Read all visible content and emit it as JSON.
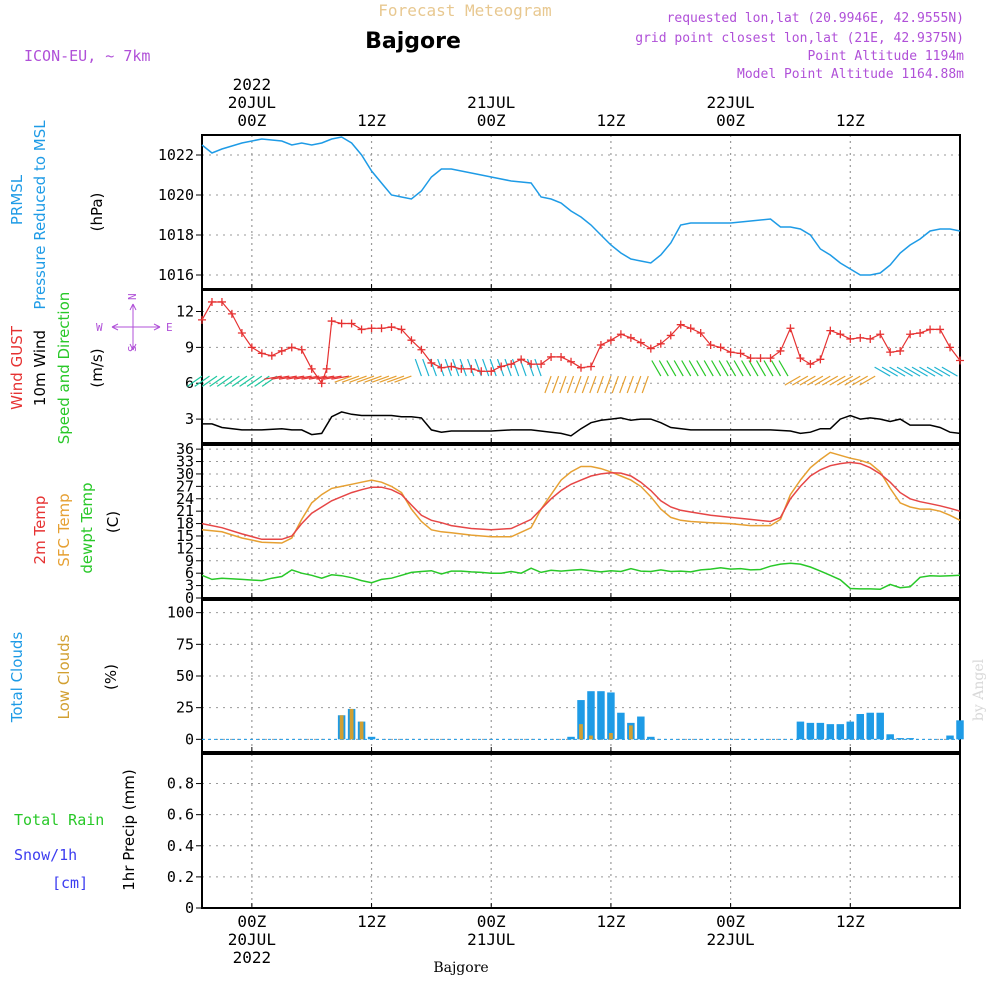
{
  "header": {
    "title": "Forecast Meteogram",
    "location": "Bajgore",
    "model": "ICON-EU, ~ 7km",
    "requested": "requested lon,lat (20.9946E, 42.9555N)",
    "grid_point": "grid point closest lon,lat (21E, 42.9375N)",
    "point_altitude": "Point Altitude 1194m",
    "model_altitude": "Model Point Altitude 1164.88m"
  },
  "footer": {
    "location": "Bajgore",
    "watermark": "by Angel"
  },
  "time_axis": {
    "top_labels": [
      {
        "t": 0,
        "lines": [
          "2022",
          "20JUL",
          "00Z"
        ]
      },
      {
        "t": 12,
        "lines": [
          "12Z"
        ]
      },
      {
        "t": 24,
        "lines": [
          "21JUL",
          "00Z"
        ]
      },
      {
        "t": 36,
        "lines": [
          "12Z"
        ]
      },
      {
        "t": 48,
        "lines": [
          "22JUL",
          "00Z"
        ]
      },
      {
        "t": 60,
        "lines": [
          "12Z"
        ]
      }
    ],
    "bottom_labels": [
      {
        "t": 0,
        "lines": [
          "00Z",
          "20JUL",
          "2022"
        ]
      },
      {
        "t": 12,
        "lines": [
          "12Z"
        ]
      },
      {
        "t": 24,
        "lines": [
          "00Z",
          "21JUL"
        ]
      },
      {
        "t": 36,
        "lines": [
          "12Z"
        ]
      },
      {
        "t": 48,
        "lines": [
          "00Z",
          "22JUL"
        ]
      },
      {
        "t": 60,
        "lines": [
          "12Z"
        ]
      }
    ],
    "t_start": -5,
    "t_end": 71
  },
  "colors": {
    "pressure": "#1e9be6",
    "gust": "#e63232",
    "wind": "#000000",
    "t2m": "#e64646",
    "sfc": "#e6a032",
    "dewpt": "#28c828",
    "total_cloud": "#1e9be6",
    "low_cloud": "#d2a032",
    "rain": "#28c828",
    "snow": "#3c3cf0",
    "label_purple": "#b050d8",
    "title_tan": "#e8c890"
  },
  "panels": {
    "pressure": {
      "labels": [
        {
          "text": "PRMSL",
          "color": "#1e9be6"
        },
        {
          "text": "Pressure Reduced to MSL",
          "color": "#1e9be6"
        }
      ],
      "unit": "(hPa)",
      "ticks": [
        "1016",
        "1018",
        "1020",
        "1022"
      ]
    },
    "wind": {
      "labels": [
        {
          "text": "Wind GUST",
          "color": "#e63232"
        },
        {
          "text": "10m Wind",
          "color": "#000000"
        },
        {
          "text": "Speed and Direction",
          "color": "#28c828"
        }
      ],
      "unit": "(m/s)",
      "ticks": [
        "3",
        "6",
        "9",
        "12"
      ],
      "compass": {
        "n": "N",
        "s": "S",
        "w": "W",
        "e": "E"
      }
    },
    "temp": {
      "labels": [
        {
          "text": "2m Temp",
          "color": "#e63232"
        },
        {
          "text": "SFC Temp",
          "color": "#e6a032"
        },
        {
          "text": "dewpt Temp",
          "color": "#28c828"
        }
      ],
      "unit": "(C)",
      "ticks": [
        "0",
        "3",
        "6",
        "9",
        "12",
        "15",
        "18",
        "21",
        "24",
        "27",
        "30",
        "33",
        "36"
      ]
    },
    "clouds": {
      "labels": [
        {
          "text": "Total Clouds",
          "color": "#1e9be6"
        },
        {
          "text": "Low Clouds",
          "color": "#d2a032"
        }
      ],
      "unit": "(%)",
      "ticks": [
        "0",
        "25",
        "50",
        "75",
        "100"
      ]
    },
    "precip": {
      "labels": [
        {
          "text": "Total  Rain",
          "color": "#28c828"
        },
        {
          "text": "Snow/1h",
          "color": "#3c3cf0"
        },
        {
          "text": "[cm]",
          "color": "#3c3cf0"
        }
      ],
      "unit": "1hr Precip (mm)",
      "ticks": [
        "0",
        "0.2",
        "0.4",
        "0.6",
        "0.8"
      ]
    }
  },
  "chart_data": {
    "type": "line",
    "x_unit": "hours from 20JUL2022 00Z",
    "pressure": {
      "name": "PRMSL",
      "ylim": [
        1015.3,
        1023.0
      ],
      "x": [
        -5,
        -4,
        -3,
        -1,
        1,
        3,
        4,
        5,
        6,
        7,
        8,
        9,
        10,
        11,
        12,
        13,
        14,
        15,
        16,
        17,
        18,
        19,
        20,
        22,
        24,
        26,
        28,
        29,
        30,
        31,
        32,
        33,
        34,
        35,
        36,
        37,
        38,
        39,
        40,
        41,
        42,
        43,
        44,
        46,
        48,
        50,
        52,
        53,
        54,
        55,
        56,
        57,
        58,
        59,
        60,
        61,
        62,
        63,
        64,
        65,
        66,
        67,
        68,
        69,
        70,
        71
      ],
      "y": [
        1022.5,
        1022.1,
        1022.3,
        1022.6,
        1022.8,
        1022.7,
        1022.5,
        1022.6,
        1022.5,
        1022.6,
        1022.8,
        1022.9,
        1022.6,
        1022.0,
        1021.2,
        1020.6,
        1020.0,
        1019.9,
        1019.8,
        1020.2,
        1020.9,
        1021.3,
        1021.3,
        1021.1,
        1020.9,
        1020.7,
        1020.6,
        1019.9,
        1019.8,
        1019.6,
        1019.2,
        1018.9,
        1018.5,
        1018.0,
        1017.5,
        1017.1,
        1016.8,
        1016.7,
        1016.6,
        1017.0,
        1017.6,
        1018.5,
        1018.6,
        1018.6,
        1018.6,
        1018.7,
        1018.8,
        1018.4,
        1018.4,
        1018.3,
        1018.0,
        1017.3,
        1017.0,
        1016.6,
        1016.3,
        1016.0,
        1016.0,
        1016.1,
        1016.5,
        1017.1,
        1017.5,
        1017.8,
        1018.2,
        1018.3,
        1018.3,
        1018.2
      ]
    },
    "wind": {
      "ylim": [
        1.0,
        13.8
      ],
      "gust": {
        "name": "Wind GUST",
        "x": [
          -5,
          -4,
          -3,
          -2,
          -1,
          0,
          1,
          2,
          3,
          4,
          5,
          6,
          7,
          7.5,
          8,
          9,
          10,
          11,
          12,
          13,
          14,
          15,
          16,
          17,
          18,
          19,
          20,
          21,
          22,
          23,
          24,
          25,
          26,
          27,
          28,
          29,
          30,
          31,
          32,
          33,
          34,
          35,
          36,
          37,
          38,
          39,
          40,
          41,
          42,
          43,
          44,
          45,
          46,
          47,
          48,
          49,
          50,
          51,
          52,
          53,
          54,
          55,
          56,
          57,
          58,
          59,
          60,
          61,
          62,
          63,
          64,
          65,
          66,
          67,
          68,
          69,
          70,
          71
        ],
        "y": [
          11.3,
          12.8,
          12.8,
          11.8,
          10.2,
          9.0,
          8.5,
          8.3,
          8.7,
          9.0,
          8.8,
          7.2,
          6.0,
          7.2,
          11.2,
          11.0,
          11.0,
          10.5,
          10.6,
          10.6,
          10.7,
          10.5,
          9.6,
          8.8,
          7.7,
          7.3,
          7.4,
          7.2,
          7.2,
          7.0,
          7.0,
          7.4,
          7.6,
          8.0,
          7.6,
          7.6,
          8.2,
          8.2,
          7.8,
          7.3,
          7.4,
          9.2,
          9.6,
          10.1,
          9.8,
          9.4,
          8.9,
          9.3,
          10.0,
          10.9,
          10.6,
          10.2,
          9.2,
          9.0,
          8.6,
          8.5,
          8.1,
          8.1,
          8.1,
          8.7,
          10.6,
          8.1,
          7.6,
          8.0,
          10.4,
          10.1,
          9.7,
          9.8,
          9.7,
          10.1,
          8.6,
          8.7,
          10.1,
          10.2,
          10.5,
          10.5,
          9.0,
          7.9
        ]
      },
      "speed": {
        "name": "10m Wind",
        "x": [
          -5,
          -4,
          -3,
          -1,
          1,
          3,
          4,
          5,
          6,
          7,
          8,
          9,
          10,
          11,
          12,
          13,
          14,
          15,
          16,
          17,
          18,
          19,
          20,
          22,
          24,
          26,
          28,
          30,
          31,
          32,
          33,
          34,
          35,
          36,
          37,
          38,
          39,
          40,
          41,
          42,
          44,
          46,
          48,
          50,
          52,
          54,
          55,
          56,
          57,
          58,
          59,
          60,
          61,
          62,
          63,
          64,
          65,
          66,
          67,
          68,
          69,
          70,
          71
        ],
        "y": [
          2.6,
          2.6,
          2.3,
          2.1,
          2.1,
          2.2,
          2.1,
          2.1,
          1.7,
          1.8,
          3.2,
          3.6,
          3.4,
          3.3,
          3.3,
          3.3,
          3.3,
          3.2,
          3.2,
          3.1,
          2.1,
          1.9,
          2.0,
          2.0,
          2.0,
          2.1,
          2.1,
          1.9,
          1.8,
          1.6,
          2.2,
          2.7,
          2.9,
          3.0,
          3.1,
          2.9,
          3.0,
          3.0,
          2.7,
          2.3,
          2.1,
          2.1,
          2.1,
          2.1,
          2.1,
          2.0,
          1.8,
          1.9,
          2.2,
          2.2,
          3.0,
          3.3,
          3.0,
          3.1,
          3.0,
          2.8,
          3.0,
          2.5,
          2.5,
          2.5,
          2.3,
          1.9,
          1.8
        ]
      },
      "direction_bands": [
        {
          "t0": -5,
          "t1": 3,
          "color": "#20c8a0",
          "deg": 235
        },
        {
          "t0": 3,
          "t1": 10,
          "color": "#e63232",
          "deg": 260
        },
        {
          "t0": 10,
          "t1": 16,
          "color": "#e6a032",
          "deg": 250
        },
        {
          "t0": 17,
          "t1": 29,
          "color": "#20b4d2",
          "deg": 340
        },
        {
          "t0": 30,
          "t1": 40,
          "color": "#e6a032",
          "deg": 200
        },
        {
          "t0": 41,
          "t1": 54,
          "color": "#28c828",
          "deg": 330
        },
        {
          "t0": 55,
          "t1": 63,
          "color": "#e6a032",
          "deg": 240
        },
        {
          "t0": 64,
          "t1": 71,
          "color": "#20b4d2",
          "deg": 300
        }
      ]
    },
    "temperature": {
      "ylim": [
        0,
        37
      ],
      "t2m": {
        "name": "2m Temp",
        "x": [
          -5,
          -3,
          -1,
          1,
          3,
          4,
          5,
          6,
          7,
          8,
          9,
          10,
          11,
          12,
          13,
          14,
          15,
          16,
          17,
          18,
          19,
          20,
          22,
          24,
          26,
          28,
          29,
          30,
          31,
          32,
          33,
          34,
          35,
          36,
          37,
          38,
          39,
          40,
          41,
          42,
          43,
          44,
          46,
          48,
          50,
          52,
          53,
          54,
          55,
          56,
          57,
          58,
          59,
          60,
          61,
          62,
          63,
          64,
          65,
          66,
          67,
          68,
          69,
          70,
          71
        ],
        "y": [
          18,
          17,
          15.5,
          14.2,
          14.2,
          15,
          18,
          20.5,
          22,
          23.5,
          24.5,
          25.5,
          26.2,
          26.8,
          26.8,
          26.2,
          25,
          22.5,
          20,
          18.8,
          18.2,
          17.5,
          16.8,
          16.5,
          16.8,
          19,
          21.5,
          24,
          26,
          27.5,
          28.5,
          29.5,
          30,
          30.3,
          30.2,
          29.5,
          28,
          26,
          23.5,
          22,
          21.2,
          20.8,
          20,
          19.5,
          19,
          18.5,
          19.5,
          24,
          27,
          29.5,
          31,
          32,
          32.5,
          32.8,
          32.5,
          31.5,
          30,
          28,
          25.5,
          24,
          23.3,
          22.8,
          22.3,
          21.7,
          21
        ]
      },
      "sfc": {
        "name": "SFC Temp",
        "x": [
          -5,
          -3,
          -1,
          1,
          3,
          4,
          5,
          6,
          7,
          8,
          9,
          10,
          11,
          12,
          13,
          14,
          15,
          16,
          17,
          18,
          19,
          20,
          22,
          24,
          26,
          28,
          29,
          30,
          31,
          32,
          33,
          34,
          35,
          36,
          37,
          38,
          39,
          40,
          41,
          42,
          43,
          44,
          46,
          48,
          50,
          52,
          53,
          54,
          55,
          56,
          57,
          58,
          59,
          60,
          61,
          62,
          63,
          64,
          65,
          66,
          67,
          68,
          69,
          70,
          71
        ],
        "y": [
          16.5,
          16,
          14.5,
          13.5,
          13.3,
          14.5,
          19,
          23,
          25,
          26.5,
          27,
          27.5,
          28,
          28.5,
          28,
          27,
          25.5,
          21.5,
          18.5,
          16.5,
          16,
          15.8,
          15.2,
          14.8,
          14.8,
          17,
          21.5,
          25,
          28.5,
          30.5,
          31.8,
          31.8,
          31.3,
          30.5,
          29.5,
          28.5,
          27,
          24.5,
          21.5,
          19.5,
          18.8,
          18.5,
          18.2,
          18,
          17.5,
          17.5,
          19,
          25,
          28.5,
          31.5,
          33.5,
          35.2,
          34.5,
          33.8,
          33.3,
          32.5,
          30.5,
          26.5,
          23,
          22,
          21.5,
          21.5,
          21,
          20,
          18.8
        ]
      },
      "dewpt": {
        "name": "dewpt Temp",
        "x": [
          -5,
          -4,
          -3,
          -1,
          1,
          2,
          3,
          4,
          5,
          6,
          7,
          8,
          9,
          10,
          11,
          12,
          13,
          14,
          15,
          16,
          17,
          18,
          19,
          20,
          21,
          22,
          23,
          24,
          25,
          26,
          27,
          28,
          29,
          30,
          31,
          32,
          33,
          34,
          35,
          36,
          37,
          38,
          39,
          40,
          41,
          42,
          43,
          44,
          45,
          46,
          47,
          48,
          49,
          50,
          51,
          52,
          53,
          54,
          55,
          56,
          57,
          58,
          59,
          60,
          61,
          62,
          63,
          64,
          65,
          66,
          67,
          68,
          69,
          70,
          71
        ],
        "y": [
          5.5,
          4.5,
          4.8,
          4.5,
          4.2,
          4.8,
          5.2,
          6.8,
          6,
          5.5,
          4.8,
          5.6,
          5.4,
          4.9,
          4.2,
          3.7,
          4.5,
          4.8,
          5.5,
          6.2,
          6.4,
          6.6,
          5.8,
          6.5,
          6.5,
          6.3,
          6.2,
          6,
          6,
          6.4,
          6,
          7.2,
          6.2,
          6.7,
          6.5,
          6.7,
          6.9,
          6.6,
          6.3,
          6.6,
          6.4,
          7.1,
          6.5,
          6.4,
          6.8,
          6.4,
          6.5,
          6.3,
          6.8,
          7,
          7.3,
          7,
          7.1,
          6.8,
          6.9,
          7.7,
          8.2,
          8.4,
          8.2,
          7.5,
          6.5,
          5.5,
          4.4,
          2.3,
          2.2,
          2.2,
          2.1,
          3.3,
          2.5,
          2.7,
          5,
          5.4,
          5.3,
          5.4,
          5.5
        ]
      }
    },
    "clouds": {
      "ylim": [
        -10,
        110
      ],
      "total": {
        "name": "Total Clouds",
        "x": [
          9,
          10,
          11,
          12,
          32,
          33,
          34,
          35,
          36,
          37,
          38,
          39,
          40,
          55,
          56,
          57,
          58,
          59,
          60,
          61,
          62,
          63,
          64,
          65,
          66,
          70,
          71
        ],
        "y": [
          19,
          24,
          14,
          2,
          2,
          31,
          38,
          38,
          37,
          21,
          13,
          18,
          2,
          14,
          13,
          13,
          12,
          12,
          14,
          20,
          21,
          21,
          4,
          1,
          1,
          3,
          15
        ]
      },
      "low": {
        "name": "Low Clouds",
        "x": [
          9,
          10,
          11,
          33,
          34,
          36,
          38
        ],
        "y": [
          19,
          24,
          14,
          12,
          3,
          5,
          11
        ]
      }
    },
    "precip": {
      "ylim": [
        0,
        0.99
      ],
      "rain": {
        "name": "Total  Rain",
        "x": [],
        "y": []
      },
      "snow": {
        "name": "Snow/1h",
        "x": [],
        "y": []
      }
    }
  }
}
